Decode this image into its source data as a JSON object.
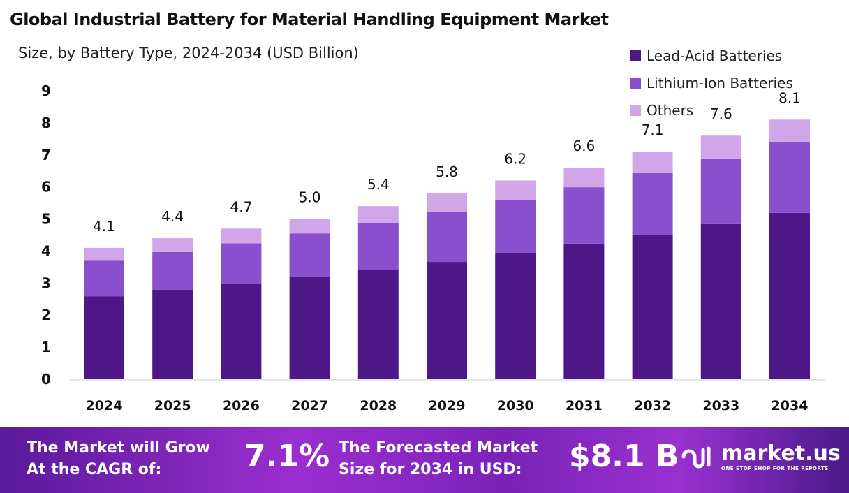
{
  "chart_data": {
    "type": "bar",
    "stacked": true,
    "title": "Global Industrial Battery for Material Handling Equipment Market",
    "subtitle": "Size, by Battery Type, 2024-2034 (USD Billion)",
    "categories": [
      "2024",
      "2025",
      "2026",
      "2027",
      "2028",
      "2029",
      "2030",
      "2031",
      "2032",
      "2033",
      "2034"
    ],
    "series": [
      {
        "name": "Lead-Acid Batteries",
        "color": "#4e1787",
        "values": [
          2.59,
          2.79,
          2.98,
          3.2,
          3.42,
          3.66,
          3.94,
          4.23,
          4.51,
          4.84,
          5.19
        ]
      },
      {
        "name": "Lithium-Ion Batteries",
        "color": "#8a4fcc",
        "values": [
          1.11,
          1.18,
          1.26,
          1.35,
          1.46,
          1.57,
          1.66,
          1.76,
          1.92,
          2.05,
          2.2
        ]
      },
      {
        "name": "Others",
        "color": "#d0a6e8",
        "values": [
          0.4,
          0.43,
          0.46,
          0.45,
          0.52,
          0.57,
          0.6,
          0.61,
          0.67,
          0.71,
          0.71
        ]
      }
    ],
    "totals": [
      "4.1",
      "4.4",
      "4.7",
      "5.0",
      "5.4",
      "5.8",
      "6.2",
      "6.6",
      "7.1",
      "7.6",
      "8.1"
    ],
    "yticks": [
      "0",
      "1",
      "2",
      "3",
      "4",
      "5",
      "6",
      "7",
      "8",
      "9"
    ],
    "ylim": [
      0,
      9
    ],
    "grid": false,
    "legend": "top-right"
  },
  "footer": {
    "cagr_label_1": "The Market will Grow",
    "cagr_label_2": "At the CAGR of:",
    "cagr_value": "7.1%",
    "forecast_label_1": "The Forecasted Market",
    "forecast_label_2": "Size for 2034 in USD:",
    "forecast_value": "$8.1 B",
    "logo_name": "market.us",
    "logo_tagline": "ONE STOP SHOP FOR THE REPORTS"
  }
}
